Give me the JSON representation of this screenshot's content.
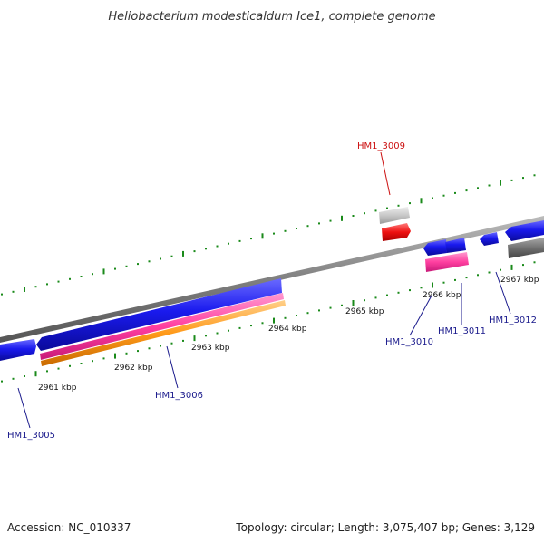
{
  "title": "Heliobacterium modesticaldum Ice1, complete genome",
  "footer": {
    "accession": "Accession: NC_010337",
    "stats": "Topology: circular; Length: 3,075,407 bp; Genes: 3,129"
  },
  "colors": {
    "backbone": "#808080",
    "tick": "#1a8a1a",
    "gene_blue": "#1a1aee",
    "gene_pink": "#ff3fa0",
    "gene_orange": "#ff9a1a",
    "gene_red": "#ee1111",
    "gene_light_gray": "#c8c8c8",
    "gene_dark_gray": "#707070",
    "label_blue": "#1a1a8c",
    "label_red": "#cc1111"
  },
  "ticks": [
    "2961 kbp",
    "2962 kbp",
    "2963 kbp",
    "2964 kbp",
    "2965 kbp",
    "2966 kbp",
    "2967 kbp"
  ],
  "gene_labels": {
    "hm1_3005": "HM1_3005",
    "hm1_3006": "HM1_3006",
    "hm1_3009": "HM1_3009",
    "hm1_3010": "HM1_3010",
    "hm1_3011": "HM1_3011",
    "hm1_3012": "HM1_3012"
  }
}
